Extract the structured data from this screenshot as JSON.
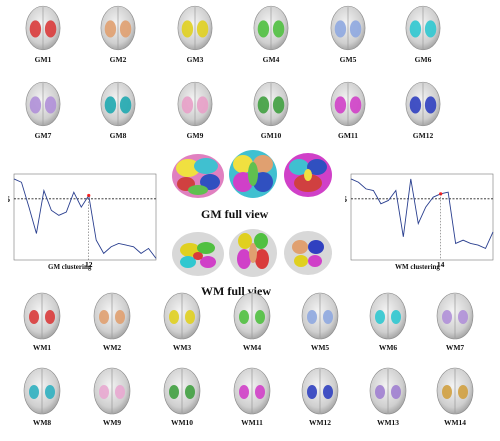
{
  "gm_regions": [
    {
      "label": "GM1",
      "color": "#d93b3b"
    },
    {
      "label": "GM2",
      "color": "#e0a070"
    },
    {
      "label": "GM3",
      "color": "#e0d020"
    },
    {
      "label": "GM4",
      "color": "#50c040"
    },
    {
      "label": "GM5",
      "color": "#8fa8e0"
    },
    {
      "label": "GM6",
      "color": "#30c8d0"
    },
    {
      "label": "GM7",
      "color": "#b090d8"
    },
    {
      "label": "GM8",
      "color": "#20a8b0"
    },
    {
      "label": "GM9",
      "color": "#e8a0c8"
    },
    {
      "label": "GM10",
      "color": "#40a040"
    },
    {
      "label": "GM11",
      "color": "#d040c8"
    },
    {
      "label": "GM12",
      "color": "#3040c0"
    }
  ],
  "wm_regions": [
    {
      "label": "WM1",
      "color": "#d93b3b"
    },
    {
      "label": "WM2",
      "color": "#e0a070"
    },
    {
      "label": "WM3",
      "color": "#e0d020"
    },
    {
      "label": "WM4",
      "color": "#50c040"
    },
    {
      "label": "WM5",
      "color": "#8fa8e0"
    },
    {
      "label": "WM6",
      "color": "#30c8d0"
    },
    {
      "label": "WM7",
      "color": "#b090d8"
    },
    {
      "label": "WM8",
      "color": "#30b0c0"
    },
    {
      "label": "WM9",
      "color": "#e8a8d0"
    },
    {
      "label": "WM10",
      "color": "#40a040"
    },
    {
      "label": "WM11",
      "color": "#d040c8"
    },
    {
      "label": "WM12",
      "color": "#3040c0"
    },
    {
      "label": "WM13",
      "color": "#a080d0"
    },
    {
      "label": "WM14",
      "color": "#d0a040"
    }
  ],
  "gm_full_view_label": "GM full view",
  "wm_full_view_label": "WM full view",
  "chart_data": [
    {
      "type": "line",
      "xlabel": "GM clustering",
      "threshold_label": "0.85",
      "selected_label": "12",
      "threshold": 0.85,
      "selected_k": 12,
      "x": [
        2,
        3,
        4,
        5,
        6,
        7,
        8,
        9,
        10,
        11,
        12,
        13,
        14,
        15,
        16,
        17,
        18,
        19,
        20,
        21
      ],
      "values": [
        0.97,
        0.95,
        0.8,
        0.64,
        0.9,
        0.78,
        0.75,
        0.77,
        0.89,
        0.8,
        0.87,
        0.6,
        0.52,
        0.56,
        0.58,
        0.57,
        0.56,
        0.52,
        0.55,
        0.49
      ],
      "ylim": [
        0.48,
        1.0
      ],
      "line_color": "#2a3f8f",
      "marker_color": "#ff2020"
    },
    {
      "type": "line",
      "xlabel": "WM clustering",
      "threshold_label": "0.85",
      "selected_label": "14",
      "threshold": 0.85,
      "selected_k": 14,
      "x": [
        2,
        3,
        4,
        5,
        6,
        7,
        8,
        9,
        10,
        11,
        12,
        13,
        14,
        15,
        16,
        17,
        18,
        19,
        20,
        21
      ],
      "values": [
        0.97,
        0.95,
        0.91,
        0.9,
        0.82,
        0.84,
        0.9,
        0.62,
        0.97,
        0.7,
        0.8,
        0.86,
        0.88,
        0.89,
        0.58,
        0.6,
        0.58,
        0.57,
        0.55,
        0.65
      ],
      "ylim": [
        0.48,
        1.0
      ],
      "line_color": "#2a3f8f",
      "marker_color": "#ff2020"
    }
  ]
}
